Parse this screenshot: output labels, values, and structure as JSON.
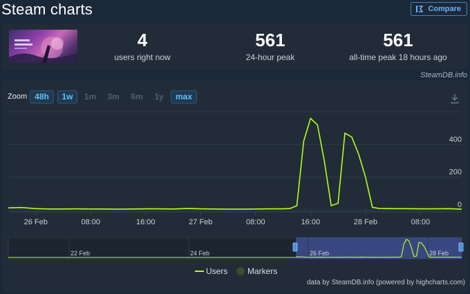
{
  "header": {
    "title": "Steam charts",
    "compare_label": "Compare"
  },
  "stats": {
    "current": {
      "value": "4",
      "label": "users right now"
    },
    "peak_24h": {
      "value": "561",
      "label": "24-hour peak"
    },
    "all_time": {
      "value": "561",
      "label": "all-time peak 18 hours ago"
    }
  },
  "credit_top": "SteamDB.info",
  "zoom": {
    "label": "Zoom",
    "options": [
      {
        "label": "48h",
        "active": true
      },
      {
        "label": "1w",
        "active": true
      },
      {
        "label": "1m",
        "active": false
      },
      {
        "label": "3m",
        "active": false
      },
      {
        "label": "6m",
        "active": false
      },
      {
        "label": "1y",
        "active": false
      },
      {
        "label": "max",
        "active": true
      }
    ]
  },
  "legend": {
    "users": "Users",
    "markers": "Markers"
  },
  "credit_bottom": "data by SteamDB.info (powered by highcharts.com)",
  "colors": {
    "users_line": "#b4ff1b",
    "navigator_mask": "#3e4d8f",
    "accent": "#66c0f4",
    "background": "#1b2838"
  },
  "chart_data": {
    "type": "line",
    "x_tick_labels": [
      "26 Feb",
      "08:00",
      "16:00",
      "27 Feb",
      "08:00",
      "16:00",
      "28 Feb",
      "08:00"
    ],
    "y_tick_labels": [
      "0",
      "200",
      "400"
    ],
    "ylim": [
      0,
      600
    ],
    "series": [
      {
        "name": "Users",
        "points": [
          [
            0,
            12
          ],
          [
            2,
            14
          ],
          [
            4,
            7
          ],
          [
            6,
            5
          ],
          [
            8,
            5
          ],
          [
            10,
            6
          ],
          [
            12,
            5
          ],
          [
            14,
            5
          ],
          [
            16,
            4
          ],
          [
            18,
            5
          ],
          [
            20,
            6
          ],
          [
            22,
            6
          ],
          [
            24,
            5
          ],
          [
            26,
            8
          ],
          [
            28,
            6
          ],
          [
            30,
            5
          ],
          [
            32,
            4
          ],
          [
            34,
            4
          ],
          [
            36,
            5
          ],
          [
            38,
            6
          ],
          [
            40,
            6
          ],
          [
            41,
            8
          ],
          [
            42,
            25
          ],
          [
            43,
            420
          ],
          [
            44,
            560
          ],
          [
            45,
            520
          ],
          [
            46,
            300
          ],
          [
            47,
            25
          ],
          [
            48,
            40
          ],
          [
            49,
            470
          ],
          [
            50,
            445
          ],
          [
            51,
            340
          ],
          [
            52,
            200
          ],
          [
            53,
            15
          ],
          [
            54,
            8
          ],
          [
            56,
            7
          ],
          [
            58,
            7
          ],
          [
            60,
            6
          ],
          [
            62,
            6
          ],
          [
            64,
            7
          ],
          [
            66,
            4
          ]
        ]
      }
    ],
    "navigator": {
      "tick_labels": [
        "22 Feb",
        "24 Feb",
        "26 Feb",
        "28 Feb"
      ]
    }
  }
}
